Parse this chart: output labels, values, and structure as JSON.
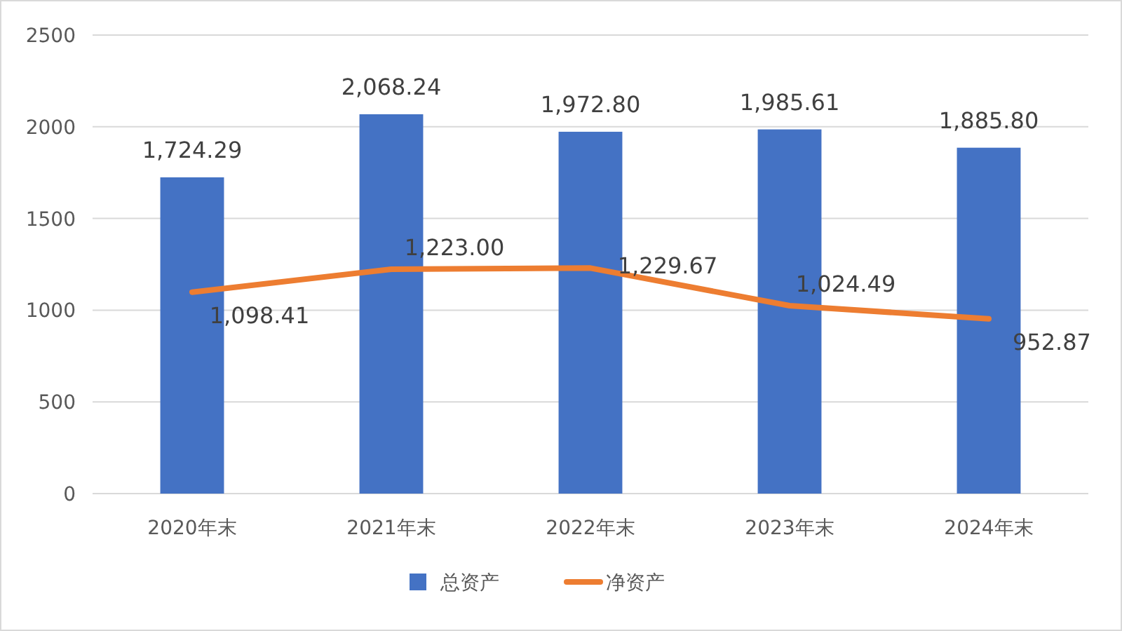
{
  "chart_data": {
    "type": "bar",
    "categories": [
      "2020年末",
      "2021年末",
      "2022年末",
      "2023年末",
      "2024年末"
    ],
    "series": [
      {
        "name": "总资产",
        "color": "#4472c4",
        "values": [
          1724.29,
          2068.24,
          1972.8,
          1985.61,
          1885.8
        ],
        "value_labels": [
          "1,724.29",
          "2,068.24",
          "1,972.80",
          "1,985.61",
          "1,885.80"
        ]
      },
      {
        "name": "净资产",
        "type": "line",
        "color": "#ed7d31",
        "values": [
          1098.41,
          1223.0,
          1229.67,
          1024.49,
          952.87
        ],
        "value_labels": [
          "1,098.41",
          "1,223.00",
          "1,229.67",
          "1,024.49",
          "952.87"
        ]
      }
    ],
    "ylim": [
      0,
      2500
    ],
    "yticks": [
      0,
      500,
      1000,
      1500,
      2000,
      2500
    ],
    "grid": "y",
    "legend": "bottom",
    "marker": "none",
    "line_style": "solid"
  }
}
